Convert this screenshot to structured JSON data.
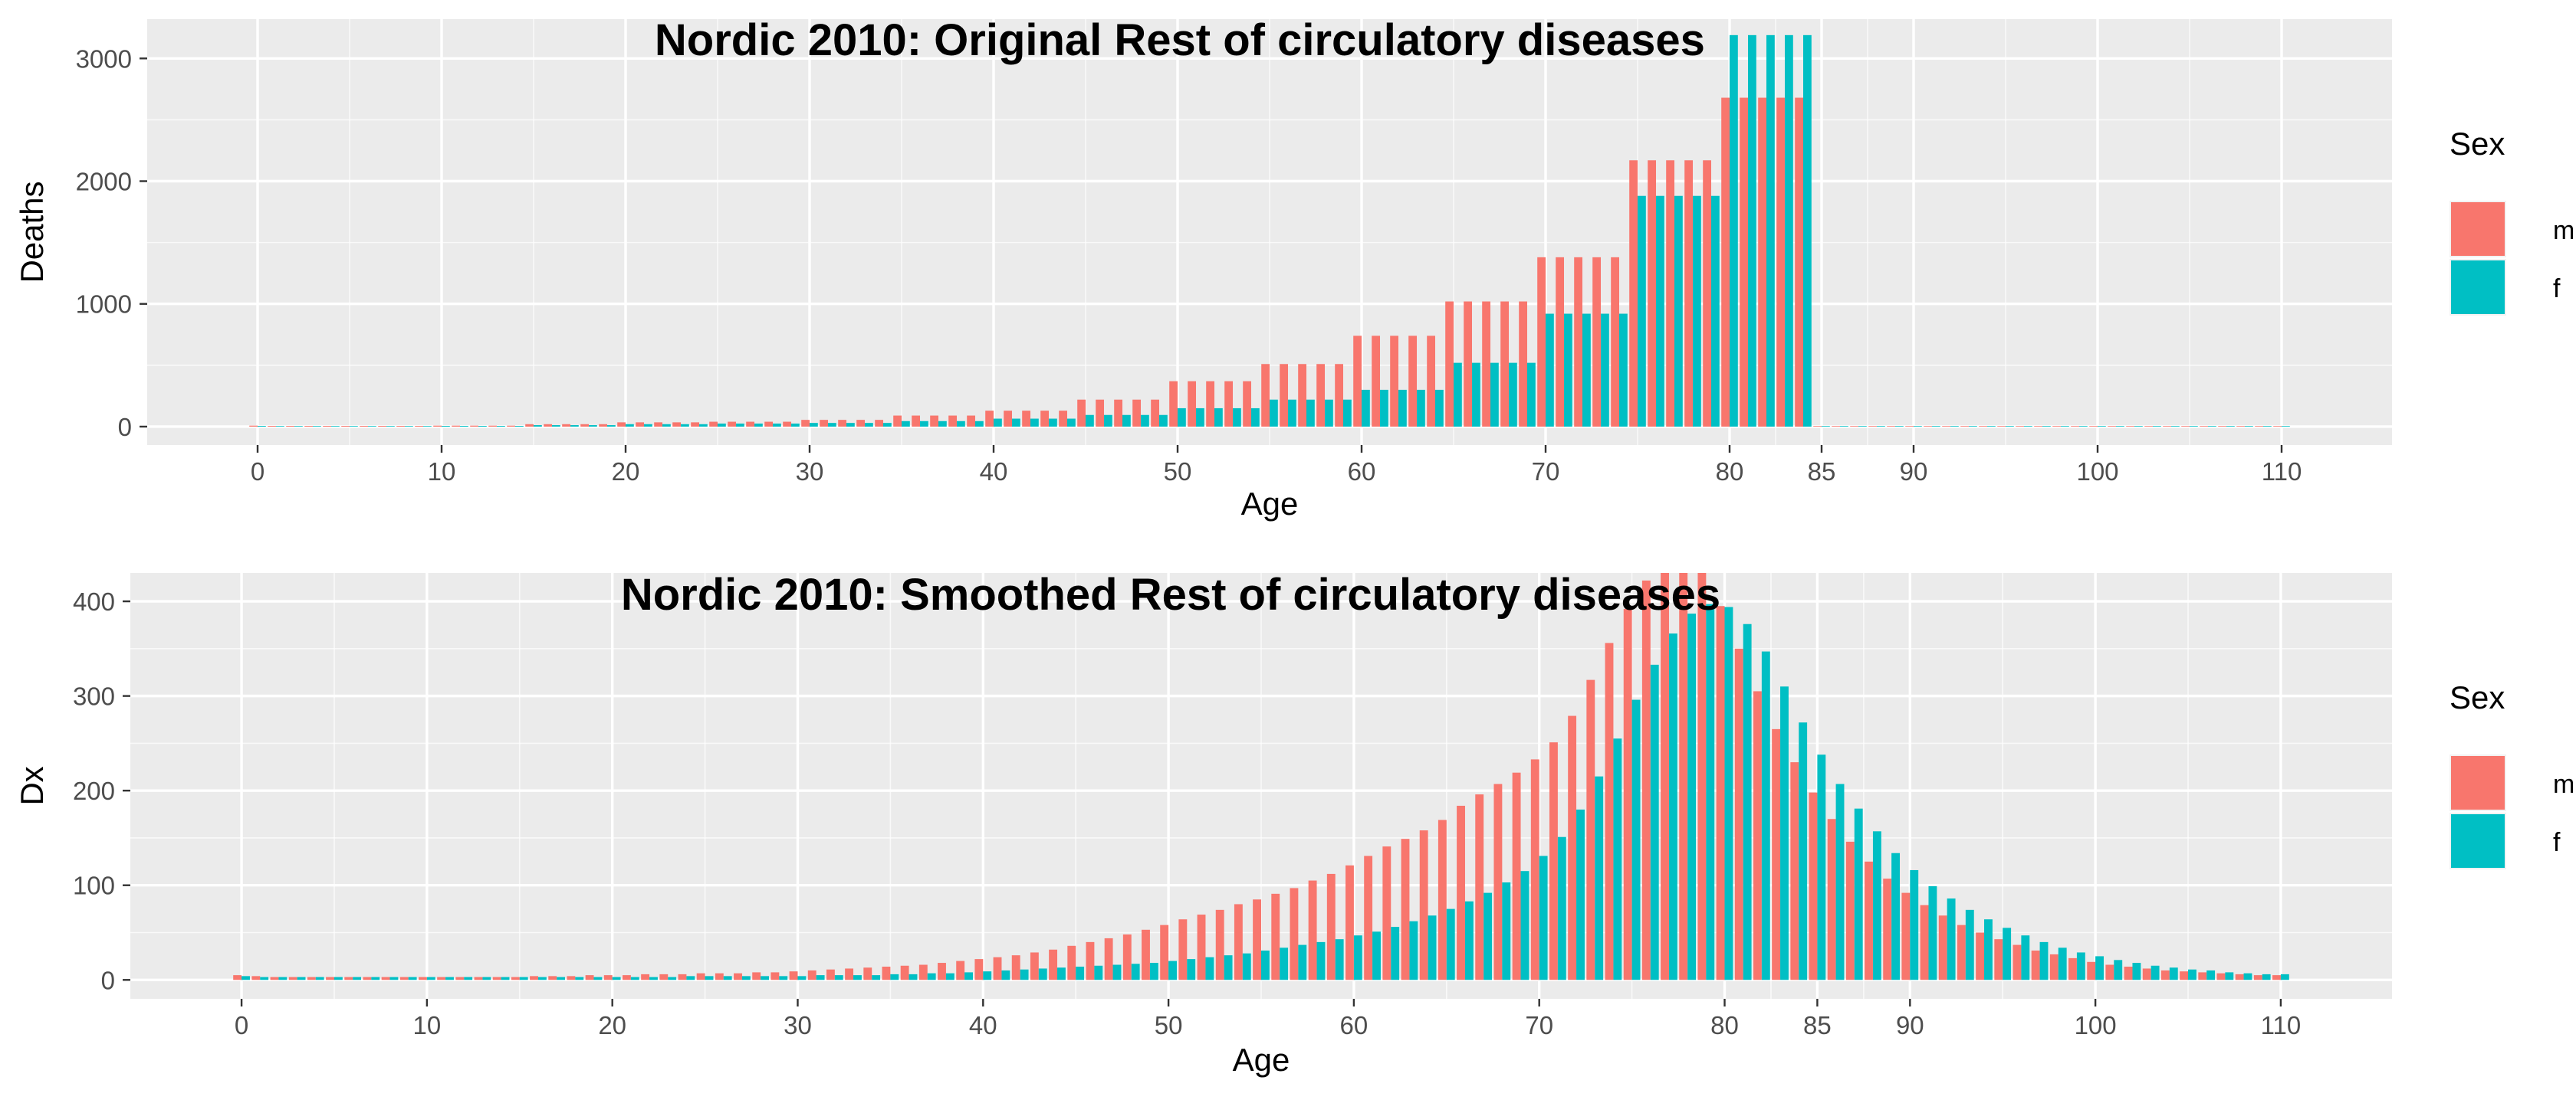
{
  "colors": {
    "m": "#F8766D",
    "f": "#00BFC4",
    "panel": "#EBEBEB",
    "grid": "#FFFFFF",
    "axis_text": "#4D4D4D",
    "title": "#000000"
  },
  "chart_data": [
    {
      "type": "bar",
      "title": "Nordic 2010: Original Rest of circulatory diseases",
      "xlabel": "Age",
      "ylabel": "Deaths",
      "xlim": [
        -6,
        116
      ],
      "ylim": [
        -150,
        3320
      ],
      "x_ticks": [
        0,
        10,
        20,
        30,
        40,
        50,
        60,
        70,
        80,
        85,
        90,
        100,
        110
      ],
      "y_ticks": [
        0,
        1000,
        2000,
        3000
      ],
      "grid": true,
      "legend": {
        "title": "Sex",
        "position": "right",
        "entries": [
          "m",
          "f"
        ]
      },
      "x": [
        0,
        1,
        2,
        3,
        4,
        5,
        6,
        7,
        8,
        9,
        10,
        11,
        12,
        13,
        14,
        15,
        16,
        17,
        18,
        19,
        20,
        21,
        22,
        23,
        24,
        25,
        26,
        27,
        28,
        29,
        30,
        31,
        32,
        33,
        34,
        35,
        36,
        37,
        38,
        39,
        40,
        41,
        42,
        43,
        44,
        45,
        46,
        47,
        48,
        49,
        50,
        51,
        52,
        53,
        54,
        55,
        56,
        57,
        58,
        59,
        60,
        61,
        62,
        63,
        64,
        65,
        66,
        67,
        68,
        69,
        70,
        71,
        72,
        73,
        74,
        75,
        76,
        77,
        78,
        79,
        80,
        81,
        82,
        83,
        84,
        85,
        86,
        87,
        88,
        89,
        90,
        91,
        92,
        93,
        94,
        95,
        96,
        97,
        98,
        99,
        100,
        101,
        102,
        103,
        104,
        105,
        106,
        107,
        108,
        109,
        110
      ],
      "series": [
        {
          "name": "m",
          "values": [
            8,
            6,
            6,
            6,
            6,
            6,
            6,
            6,
            6,
            6,
            8,
            8,
            8,
            8,
            8,
            20,
            20,
            20,
            20,
            20,
            35,
            35,
            35,
            35,
            35,
            40,
            40,
            40,
            40,
            40,
            55,
            55,
            55,
            55,
            55,
            90,
            90,
            90,
            90,
            90,
            130,
            130,
            130,
            130,
            130,
            220,
            220,
            220,
            220,
            220,
            370,
            370,
            370,
            370,
            370,
            510,
            510,
            510,
            510,
            510,
            740,
            740,
            740,
            740,
            740,
            1020,
            1020,
            1020,
            1020,
            1020,
            1380,
            1380,
            1380,
            1380,
            1380,
            2170,
            2170,
            2170,
            2170,
            2170,
            2680,
            2680,
            2680,
            2680,
            2680,
            5,
            5,
            5,
            5,
            5,
            5,
            5,
            5,
            5,
            5,
            5,
            5,
            5,
            5,
            5,
            5,
            5,
            5,
            5,
            5,
            5,
            5,
            5,
            5,
            5,
            5
          ]
        },
        {
          "name": "f",
          "values": [
            6,
            5,
            5,
            5,
            5,
            5,
            5,
            5,
            5,
            5,
            6,
            6,
            6,
            6,
            6,
            12,
            12,
            12,
            12,
            12,
            20,
            20,
            20,
            20,
            20,
            25,
            25,
            25,
            25,
            25,
            30,
            30,
            30,
            30,
            30,
            45,
            45,
            45,
            45,
            45,
            65,
            65,
            65,
            65,
            65,
            95,
            95,
            95,
            95,
            95,
            150,
            150,
            150,
            150,
            150,
            220,
            220,
            220,
            220,
            220,
            300,
            300,
            300,
            300,
            300,
            520,
            520,
            520,
            520,
            520,
            920,
            920,
            920,
            920,
            920,
            1880,
            1880,
            1880,
            1880,
            1880,
            3190,
            3190,
            3190,
            3190,
            3190,
            5,
            5,
            5,
            5,
            5,
            5,
            5,
            5,
            5,
            5,
            5,
            5,
            5,
            5,
            5,
            5,
            5,
            5,
            5,
            5,
            5,
            5,
            5,
            5,
            5,
            5
          ]
        }
      ]
    },
    {
      "type": "bar",
      "title": "Nordic 2010: Smoothed Rest of circulatory diseases",
      "xlabel": "Age",
      "ylabel": "Dx",
      "xlim": [
        -6,
        116
      ],
      "ylim": [
        -20,
        430
      ],
      "x_ticks": [
        0,
        10,
        20,
        30,
        40,
        50,
        60,
        70,
        80,
        85,
        90,
        100,
        110
      ],
      "y_ticks": [
        0,
        100,
        200,
        300,
        400
      ],
      "grid": true,
      "legend": {
        "title": "Sex",
        "position": "right",
        "entries": [
          "m",
          "f"
        ]
      },
      "x": [
        0,
        1,
        2,
        3,
        4,
        5,
        6,
        7,
        8,
        9,
        10,
        11,
        12,
        13,
        14,
        15,
        16,
        17,
        18,
        19,
        20,
        21,
        22,
        23,
        24,
        25,
        26,
        27,
        28,
        29,
        30,
        31,
        32,
        33,
        34,
        35,
        36,
        37,
        38,
        39,
        40,
        41,
        42,
        43,
        44,
        45,
        46,
        47,
        48,
        49,
        50,
        51,
        52,
        53,
        54,
        55,
        56,
        57,
        58,
        59,
        60,
        61,
        62,
        63,
        64,
        65,
        66,
        67,
        68,
        69,
        70,
        71,
        72,
        73,
        74,
        75,
        76,
        77,
        78,
        79,
        80,
        81,
        82,
        83,
        84,
        85,
        86,
        87,
        88,
        89,
        90,
        91,
        92,
        93,
        94,
        95,
        96,
        97,
        98,
        99,
        100,
        101,
        102,
        103,
        104,
        105,
        106,
        107,
        108,
        109,
        110
      ],
      "series": [
        {
          "name": "m",
          "values": [
            5,
            4,
            3,
            3,
            3,
            3,
            3,
            3,
            3,
            3,
            3,
            3,
            3,
            3,
            3,
            3,
            4,
            4,
            4,
            5,
            5,
            5,
            6,
            6,
            6,
            7,
            7,
            7,
            8,
            8,
            9,
            10,
            11,
            12,
            13,
            14,
            15,
            16,
            18,
            20,
            22,
            24,
            26,
            29,
            32,
            36,
            40,
            44,
            48,
            53,
            58,
            64,
            69,
            74,
            80,
            85,
            91,
            97,
            105,
            112,
            121,
            131,
            141,
            149,
            158,
            169,
            184,
            196,
            207,
            219,
            233,
            251,
            279,
            317,
            356,
            392,
            422,
            430,
            430,
            430,
            395,
            350,
            305,
            265,
            230,
            198,
            170,
            146,
            125,
            107,
            92,
            79,
            68,
            58,
            50,
            43,
            37,
            31,
            27,
            23,
            19,
            16,
            14,
            12,
            10,
            9,
            8,
            7,
            6,
            5,
            5
          ]
        },
        {
          "name": "f",
          "values": [
            4,
            3,
            3,
            3,
            3,
            3,
            3,
            3,
            3,
            3,
            3,
            3,
            3,
            3,
            3,
            3,
            3,
            3,
            3,
            3,
            3,
            3,
            3,
            3,
            4,
            4,
            4,
            4,
            4,
            4,
            4,
            5,
            5,
            5,
            5,
            6,
            6,
            7,
            7,
            8,
            9,
            10,
            11,
            12,
            13,
            14,
            15,
            16,
            17,
            18,
            20,
            22,
            24,
            26,
            28,
            31,
            34,
            37,
            40,
            43,
            47,
            51,
            56,
            62,
            68,
            75,
            83,
            92,
            103,
            115,
            131,
            151,
            180,
            215,
            255,
            296,
            333,
            366,
            387,
            397,
            394,
            376,
            347,
            310,
            272,
            238,
            207,
            181,
            157,
            134,
            116,
            99,
            86,
            74,
            64,
            55,
            47,
            40,
            34,
            29,
            25,
            21,
            18,
            15,
            13,
            11,
            10,
            8,
            7,
            6,
            6
          ]
        }
      ]
    }
  ]
}
